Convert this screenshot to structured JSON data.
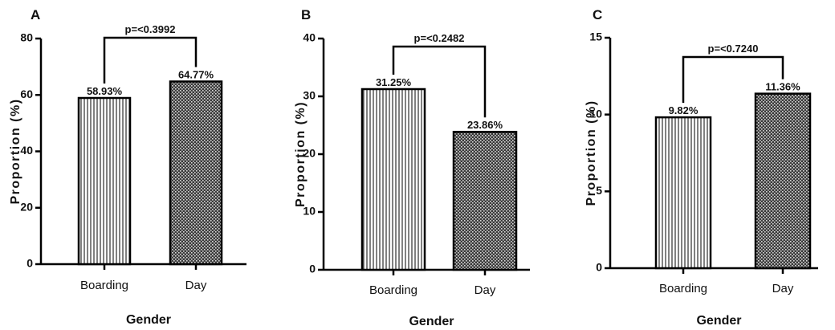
{
  "figure": {
    "colors": {
      "ink": "#000000",
      "background": "#ffffff"
    }
  },
  "chart_data": [
    {
      "type": "bar",
      "panel": "A",
      "categories": [
        "Boarding",
        "Day"
      ],
      "values": [
        58.93,
        64.77
      ],
      "data_labels": [
        "58.93%",
        "64.77%"
      ],
      "bar_patterns": [
        "vertical-lines",
        "crosshatch"
      ],
      "xlabel": "Gender",
      "ylabel": "Proportion (%)",
      "ylim": [
        0,
        80
      ],
      "yticks": [
        0,
        20,
        40,
        60,
        80
      ],
      "annotation": {
        "text": "p=<0.3992",
        "between": [
          0,
          1
        ]
      },
      "grid": false
    },
    {
      "type": "bar",
      "panel": "B",
      "categories": [
        "Boarding",
        "Day"
      ],
      "values": [
        31.25,
        23.86
      ],
      "data_labels": [
        "31.25%",
        "23.86%"
      ],
      "bar_patterns": [
        "vertical-lines",
        "crosshatch"
      ],
      "xlabel": "Gender",
      "ylabel": "Proportion (%)",
      "ylim": [
        0,
        40
      ],
      "yticks": [
        0,
        10,
        20,
        30,
        40
      ],
      "annotation": {
        "text": "p=<0.2482",
        "between": [
          0,
          1
        ]
      },
      "grid": false
    },
    {
      "type": "bar",
      "panel": "C",
      "categories": [
        "Boarding",
        "Day"
      ],
      "values": [
        9.82,
        11.36
      ],
      "data_labels": [
        "9.82%",
        "11.36%"
      ],
      "bar_patterns": [
        "vertical-lines",
        "crosshatch"
      ],
      "xlabel": "Gender",
      "ylabel": "Proportion (%)",
      "ylim": [
        0,
        15
      ],
      "yticks": [
        0,
        5,
        10,
        15
      ],
      "annotation": {
        "text": "p=<0.7240",
        "between": [
          0,
          1
        ]
      },
      "grid": false
    }
  ]
}
